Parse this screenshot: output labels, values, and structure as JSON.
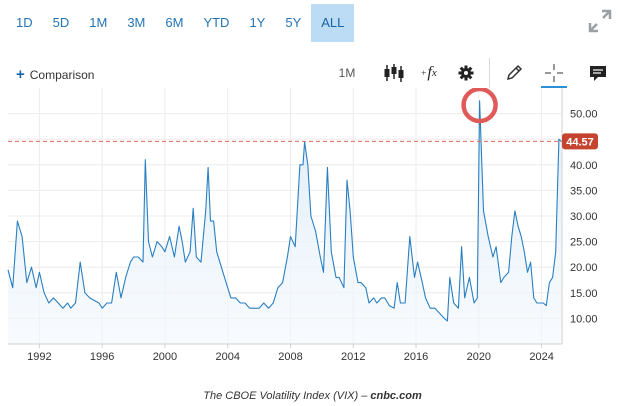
{
  "ranges": [
    "1D",
    "5D",
    "1M",
    "3M",
    "6M",
    "YTD",
    "1Y",
    "5Y",
    "ALL"
  ],
  "active_range": "ALL",
  "toolbar": {
    "comparison_label": "Comparison",
    "interval_label": "1M",
    "fx_label": "f",
    "fx_sub": "x"
  },
  "colors": {
    "accent": "#2474b5",
    "line": "#2a7fc1",
    "fill": "#dcebf8",
    "price_tag": "#c4442f",
    "circle": "#e05a5a"
  },
  "icons": [
    "expand-icon",
    "candlestick-icon",
    "function-icon",
    "gear-icon",
    "pencil-icon",
    "crosshair-icon",
    "comment-icon"
  ],
  "chart_data": {
    "type": "area",
    "title": "",
    "xlabel": "",
    "ylabel": "",
    "x_ticks": [
      "1992",
      "1996",
      "2000",
      "2004",
      "2008",
      "2012",
      "2016",
      "2020",
      "2024"
    ],
    "y_ticks": [
      "10.00",
      "15.00",
      "20.00",
      "25.00",
      "30.00",
      "35.00",
      "40.00",
      "45.00",
      "50.00"
    ],
    "xlim": [
      1990.0,
      2025.3
    ],
    "ylim": [
      5,
      55
    ],
    "last_price": "44.57",
    "last_value": 44.57,
    "series": [
      {
        "values": [
          [
            1990.0,
            19.5
          ],
          [
            1990.3,
            16
          ],
          [
            1990.6,
            29
          ],
          [
            1990.9,
            26
          ],
          [
            1991.2,
            17
          ],
          [
            1991.5,
            20
          ],
          [
            1991.8,
            16
          ],
          [
            1992.0,
            19
          ],
          [
            1992.3,
            15
          ],
          [
            1992.6,
            13
          ],
          [
            1992.9,
            14
          ],
          [
            1993.2,
            13
          ],
          [
            1993.5,
            12
          ],
          [
            1993.8,
            13
          ],
          [
            1994.0,
            12
          ],
          [
            1994.3,
            13
          ],
          [
            1994.6,
            21
          ],
          [
            1994.9,
            15
          ],
          [
            1995.2,
            14
          ],
          [
            1995.5,
            13.5
          ],
          [
            1995.8,
            13
          ],
          [
            1996.0,
            12
          ],
          [
            1996.3,
            13
          ],
          [
            1996.6,
            13
          ],
          [
            1996.9,
            19
          ],
          [
            1997.2,
            14
          ],
          [
            1997.5,
            18
          ],
          [
            1997.8,
            21
          ],
          [
            1998.0,
            22
          ],
          [
            1998.3,
            22
          ],
          [
            1998.6,
            21
          ],
          [
            1998.75,
            41
          ],
          [
            1998.95,
            25
          ],
          [
            1999.2,
            22
          ],
          [
            1999.5,
            25
          ],
          [
            1999.8,
            24
          ],
          [
            2000.0,
            23
          ],
          [
            2000.3,
            26
          ],
          [
            2000.6,
            22
          ],
          [
            2000.9,
            28
          ],
          [
            2001.1,
            25
          ],
          [
            2001.3,
            21
          ],
          [
            2001.6,
            23
          ],
          [
            2001.8,
            31.5
          ],
          [
            2002.0,
            22
          ],
          [
            2002.3,
            21
          ],
          [
            2002.6,
            31
          ],
          [
            2002.75,
            39.5
          ],
          [
            2002.9,
            29
          ],
          [
            2003.1,
            29
          ],
          [
            2003.3,
            23
          ],
          [
            2003.6,
            20
          ],
          [
            2003.9,
            17
          ],
          [
            2004.2,
            14
          ],
          [
            2004.5,
            14
          ],
          [
            2004.8,
            13
          ],
          [
            2005.1,
            13
          ],
          [
            2005.4,
            12
          ],
          [
            2005.7,
            12
          ],
          [
            2006.0,
            12
          ],
          [
            2006.3,
            13
          ],
          [
            2006.6,
            12
          ],
          [
            2006.9,
            13
          ],
          [
            2007.2,
            16
          ],
          [
            2007.5,
            17
          ],
          [
            2007.8,
            22
          ],
          [
            2008.0,
            26
          ],
          [
            2008.3,
            24
          ],
          [
            2008.6,
            40
          ],
          [
            2008.8,
            40
          ],
          [
            2008.9,
            44.5
          ],
          [
            2009.1,
            40
          ],
          [
            2009.3,
            30
          ],
          [
            2009.6,
            27
          ],
          [
            2009.9,
            22
          ],
          [
            2010.1,
            19
          ],
          [
            2010.35,
            39.5
          ],
          [
            2010.6,
            23
          ],
          [
            2010.9,
            18
          ],
          [
            2011.1,
            18
          ],
          [
            2011.4,
            16
          ],
          [
            2011.6,
            37
          ],
          [
            2011.8,
            31
          ],
          [
            2012.0,
            22
          ],
          [
            2012.3,
            17
          ],
          [
            2012.5,
            17
          ],
          [
            2012.8,
            16
          ],
          [
            2013.0,
            13
          ],
          [
            2013.3,
            14
          ],
          [
            2013.5,
            13
          ],
          [
            2013.8,
            14
          ],
          [
            2014.0,
            14
          ],
          [
            2014.3,
            12.5
          ],
          [
            2014.6,
            12
          ],
          [
            2014.8,
            17
          ],
          [
            2015.0,
            13
          ],
          [
            2015.3,
            13
          ],
          [
            2015.6,
            26
          ],
          [
            2015.9,
            18
          ],
          [
            2016.1,
            21
          ],
          [
            2016.4,
            17
          ],
          [
            2016.6,
            14
          ],
          [
            2016.9,
            12
          ],
          [
            2017.2,
            12
          ],
          [
            2017.5,
            11
          ],
          [
            2017.8,
            10
          ],
          [
            2018.0,
            9.5
          ],
          [
            2018.15,
            18
          ],
          [
            2018.4,
            13
          ],
          [
            2018.7,
            12
          ],
          [
            2018.9,
            24
          ],
          [
            2019.1,
            14
          ],
          [
            2019.4,
            18
          ],
          [
            2019.7,
            13
          ],
          [
            2019.9,
            14
          ],
          [
            2020.05,
            52.5
          ],
          [
            2020.3,
            31
          ],
          [
            2020.6,
            26
          ],
          [
            2020.9,
            22
          ],
          [
            2021.1,
            24
          ],
          [
            2021.4,
            17
          ],
          [
            2021.6,
            18
          ],
          [
            2021.9,
            19
          ],
          [
            2022.1,
            26
          ],
          [
            2022.3,
            31
          ],
          [
            2022.5,
            28
          ],
          [
            2022.7,
            26
          ],
          [
            2022.9,
            23
          ],
          [
            2023.1,
            19
          ],
          [
            2023.3,
            21
          ],
          [
            2023.5,
            14
          ],
          [
            2023.7,
            13
          ],
          [
            2023.9,
            13
          ],
          [
            2024.1,
            13
          ],
          [
            2024.3,
            12.5
          ],
          [
            2024.5,
            17
          ],
          [
            2024.7,
            18
          ],
          [
            2024.9,
            23
          ],
          [
            2025.1,
            45
          ],
          [
            2025.25,
            44.57
          ]
        ]
      }
    ]
  }
}
